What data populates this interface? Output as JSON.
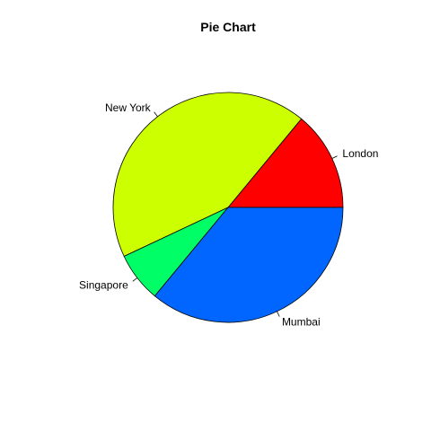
{
  "chart_data": {
    "type": "pie",
    "title": "Pie Chart",
    "labels": [
      "London",
      "New York",
      "Singapore",
      "Mumbai"
    ],
    "values": [
      14,
      43,
      7,
      36
    ],
    "colors": [
      "#FF0000",
      "#CCFF00",
      "#00FF66",
      "#0066FF"
    ],
    "start_angle_deg": 0,
    "direction": "counterclockwise",
    "legend": "none"
  }
}
